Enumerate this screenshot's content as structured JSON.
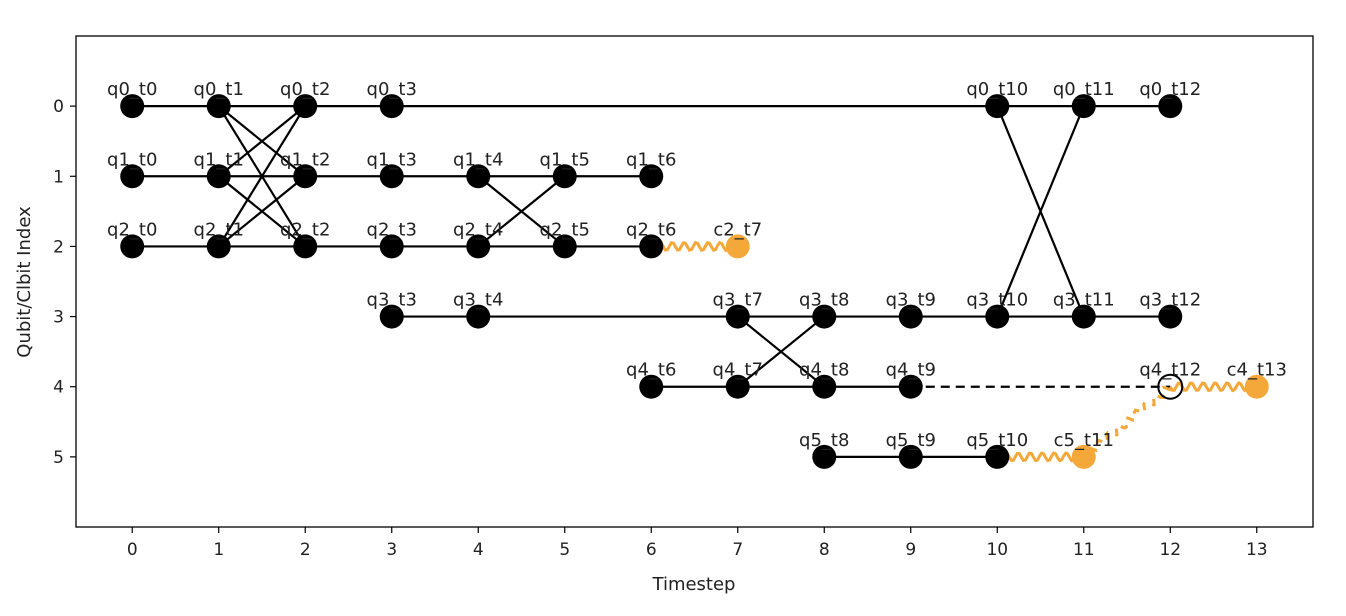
{
  "chart_data": {
    "type": "scatter",
    "xlabel": "Timestep",
    "ylabel": "Qubit/Clbit Index",
    "xlim": [
      -0.65,
      13.65
    ],
    "ylim": [
      6.0,
      -1.0
    ],
    "y_inverted": true,
    "xticks": [
      0,
      1,
      2,
      3,
      4,
      5,
      6,
      7,
      8,
      9,
      10,
      11,
      12,
      13
    ],
    "yticks": [
      0,
      1,
      2,
      3,
      4,
      5
    ],
    "grid": false,
    "colors": {
      "qubit": "#000000",
      "clbit": "#f5a83a",
      "edge": "#000000"
    },
    "nodes": [
      {
        "label": "q0_t0",
        "x": 0,
        "y": 0,
        "kind": "qubit"
      },
      {
        "label": "q0_t1",
        "x": 1,
        "y": 0,
        "kind": "qubit"
      },
      {
        "label": "q0_t2",
        "x": 2,
        "y": 0,
        "kind": "qubit"
      },
      {
        "label": "q0_t3",
        "x": 3,
        "y": 0,
        "kind": "qubit"
      },
      {
        "label": "q0_t10",
        "x": 10,
        "y": 0,
        "kind": "qubit"
      },
      {
        "label": "q0_t11",
        "x": 11,
        "y": 0,
        "kind": "qubit"
      },
      {
        "label": "q0_t12",
        "x": 12,
        "y": 0,
        "kind": "qubit"
      },
      {
        "label": "q1_t0",
        "x": 0,
        "y": 1,
        "kind": "qubit"
      },
      {
        "label": "q1_t1",
        "x": 1,
        "y": 1,
        "kind": "qubit"
      },
      {
        "label": "q1_t2",
        "x": 2,
        "y": 1,
        "kind": "qubit"
      },
      {
        "label": "q1_t3",
        "x": 3,
        "y": 1,
        "kind": "qubit"
      },
      {
        "label": "q1_t4",
        "x": 4,
        "y": 1,
        "kind": "qubit"
      },
      {
        "label": "q1_t5",
        "x": 5,
        "y": 1,
        "kind": "qubit"
      },
      {
        "label": "q1_t6",
        "x": 6,
        "y": 1,
        "kind": "qubit"
      },
      {
        "label": "q2_t0",
        "x": 0,
        "y": 2,
        "kind": "qubit"
      },
      {
        "label": "q2_t1",
        "x": 1,
        "y": 2,
        "kind": "qubit"
      },
      {
        "label": "q2_t2",
        "x": 2,
        "y": 2,
        "kind": "qubit"
      },
      {
        "label": "q2_t3",
        "x": 3,
        "y": 2,
        "kind": "qubit"
      },
      {
        "label": "q2_t4",
        "x": 4,
        "y": 2,
        "kind": "qubit"
      },
      {
        "label": "q2_t5",
        "x": 5,
        "y": 2,
        "kind": "qubit"
      },
      {
        "label": "q2_t6",
        "x": 6,
        "y": 2,
        "kind": "qubit"
      },
      {
        "label": "c2_t7",
        "x": 7,
        "y": 2,
        "kind": "clbit"
      },
      {
        "label": "q3_t3",
        "x": 3,
        "y": 3,
        "kind": "qubit"
      },
      {
        "label": "q3_t4",
        "x": 4,
        "y": 3,
        "kind": "qubit"
      },
      {
        "label": "q3_t7",
        "x": 7,
        "y": 3,
        "kind": "qubit"
      },
      {
        "label": "q3_t8",
        "x": 8,
        "y": 3,
        "kind": "qubit"
      },
      {
        "label": "q3_t9",
        "x": 9,
        "y": 3,
        "kind": "qubit"
      },
      {
        "label": "q3_t10",
        "x": 10,
        "y": 3,
        "kind": "qubit"
      },
      {
        "label": "q3_t11",
        "x": 11,
        "y": 3,
        "kind": "qubit"
      },
      {
        "label": "q3_t12",
        "x": 12,
        "y": 3,
        "kind": "qubit"
      },
      {
        "label": "q4_t6",
        "x": 6,
        "y": 4,
        "kind": "qubit"
      },
      {
        "label": "q4_t7",
        "x": 7,
        "y": 4,
        "kind": "qubit"
      },
      {
        "label": "q4_t8",
        "x": 8,
        "y": 4,
        "kind": "qubit"
      },
      {
        "label": "q4_t9",
        "x": 9,
        "y": 4,
        "kind": "qubit"
      },
      {
        "label": "q4_t12",
        "x": 12,
        "y": 4,
        "kind": "qubit",
        "hollow": true
      },
      {
        "label": "c4_t13",
        "x": 13,
        "y": 4,
        "kind": "clbit"
      },
      {
        "label": "q5_t8",
        "x": 8,
        "y": 5,
        "kind": "qubit"
      },
      {
        "label": "q5_t9",
        "x": 9,
        "y": 5,
        "kind": "qubit"
      },
      {
        "label": "q5_t10",
        "x": 10,
        "y": 5,
        "kind": "qubit"
      },
      {
        "label": "c5_t11",
        "x": 11,
        "y": 5,
        "kind": "clbit"
      }
    ],
    "edges": [
      {
        "from": [
          0,
          0
        ],
        "to": [
          3,
          0
        ],
        "style": "solid"
      },
      {
        "from": [
          3,
          0
        ],
        "to": [
          10,
          0
        ],
        "style": "solid"
      },
      {
        "from": [
          10,
          0
        ],
        "to": [
          12,
          0
        ],
        "style": "solid"
      },
      {
        "from": [
          0,
          1
        ],
        "to": [
          6,
          1
        ],
        "style": "solid"
      },
      {
        "from": [
          0,
          2
        ],
        "to": [
          6,
          2
        ],
        "style": "solid"
      },
      {
        "from": [
          3,
          3
        ],
        "to": [
          12,
          3
        ],
        "style": "solid"
      },
      {
        "from": [
          6,
          4
        ],
        "to": [
          9,
          4
        ],
        "style": "solid"
      },
      {
        "from": [
          9,
          4
        ],
        "to": [
          12,
          4
        ],
        "style": "dashed"
      },
      {
        "from": [
          8,
          5
        ],
        "to": [
          10,
          5
        ],
        "style": "solid"
      },
      {
        "from": [
          1,
          0
        ],
        "to": [
          2,
          2
        ],
        "style": "solid"
      },
      {
        "from": [
          1,
          2
        ],
        "to": [
          2,
          0
        ],
        "style": "solid"
      },
      {
        "from": [
          1,
          1
        ],
        "to": [
          2,
          2
        ],
        "style": "solid"
      },
      {
        "from": [
          1,
          2
        ],
        "to": [
          2,
          1
        ],
        "style": "solid"
      },
      {
        "from": [
          1,
          1
        ],
        "to": [
          2,
          0
        ],
        "style": "solid"
      },
      {
        "from": [
          1,
          0
        ],
        "to": [
          2,
          1
        ],
        "style": "solid"
      },
      {
        "from": [
          4,
          1
        ],
        "to": [
          5,
          2
        ],
        "style": "solid"
      },
      {
        "from": [
          4,
          2
        ],
        "to": [
          5,
          1
        ],
        "style": "solid"
      },
      {
        "from": [
          7,
          3
        ],
        "to": [
          8,
          4
        ],
        "style": "solid"
      },
      {
        "from": [
          7,
          4
        ],
        "to": [
          8,
          3
        ],
        "style": "solid"
      },
      {
        "from": [
          10,
          0
        ],
        "to": [
          11,
          3
        ],
        "style": "solid"
      },
      {
        "from": [
          10,
          3
        ],
        "to": [
          11,
          0
        ],
        "style": "solid"
      }
    ],
    "classical_links": [
      {
        "from": [
          6,
          2
        ],
        "to": [
          7,
          2
        ],
        "style": "wavy"
      },
      {
        "from": [
          10,
          5
        ],
        "to": [
          11,
          5
        ],
        "style": "wavy"
      },
      {
        "from": [
          11,
          5
        ],
        "to": [
          12,
          4
        ],
        "style": "wavy"
      },
      {
        "from": [
          12,
          4
        ],
        "to": [
          13,
          4
        ],
        "style": "wavy"
      }
    ]
  }
}
